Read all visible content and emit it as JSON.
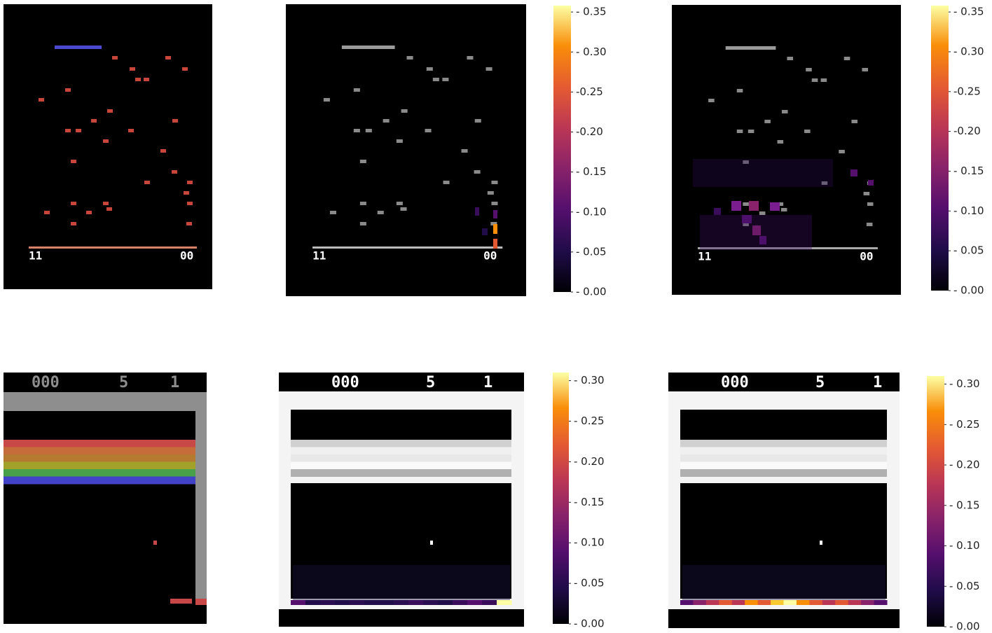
{
  "top_row": {
    "score_left": "11",
    "score_right": "00",
    "colorbars": [
      {
        "lim": [
          0,
          0.358
        ],
        "ticks": [
          {
            "value": 0.35,
            "label": "- 0.35"
          },
          {
            "value": 0.3,
            "label": "- 0.30"
          },
          {
            "value": 0.25,
            "label": "-0.25"
          },
          {
            "value": 0.2,
            "label": "-0.20"
          },
          {
            "value": 0.15,
            "label": "- 0.15"
          },
          {
            "value": 0.1,
            "label": "- 0.10"
          },
          {
            "value": 0.05,
            "label": "- 0.05"
          },
          {
            "value": 0,
            "label": "- 0.00"
          }
        ]
      },
      {
        "lim": [
          0,
          0.358
        ],
        "ticks": [
          {
            "value": 0.35,
            "label": "- 0.35"
          },
          {
            "value": 0.3,
            "label": "- 0.30"
          },
          {
            "value": 0.25,
            "label": "-0.25"
          },
          {
            "value": 0.2,
            "label": "-0.20"
          },
          {
            "value": 0.15,
            "label": "- 0.15"
          },
          {
            "value": 0.1,
            "label": "- 0.10"
          },
          {
            "value": 0.05,
            "label": "- 0.05"
          },
          {
            "value": 0,
            "label": "- 0.00"
          }
        ]
      }
    ]
  },
  "bottom_row": {
    "score": [
      "000",
      "5",
      "1"
    ],
    "colorbars": [
      {
        "lim": [
          0,
          0.31
        ],
        "ticks": [
          {
            "value": 0.3,
            "label": "- 0.30"
          },
          {
            "value": 0.25,
            "label": "- 0.25"
          },
          {
            "value": 0.2,
            "label": "- 0.20"
          },
          {
            "value": 0.15,
            "label": "- 0.15"
          },
          {
            "value": 0.1,
            "label": "- 0.10"
          },
          {
            "value": 0.05,
            "label": "- 0.05"
          },
          {
            "value": 0,
            "label": "- 0.00"
          }
        ]
      },
      {
        "lim": [
          0,
          0.31
        ],
        "ticks": [
          {
            "value": 0.3,
            "label": "- 0.30"
          },
          {
            "value": 0.25,
            "label": "- 0.25"
          },
          {
            "value": 0.2,
            "label": "- 0.20"
          },
          {
            "value": 0.15,
            "label": "- 0.15"
          },
          {
            "value": 0.1,
            "label": "- 0.10"
          },
          {
            "value": 0.05,
            "label": "- 0.05"
          },
          {
            "value": 0,
            "label": "- 0.00"
          }
        ]
      }
    ]
  }
}
